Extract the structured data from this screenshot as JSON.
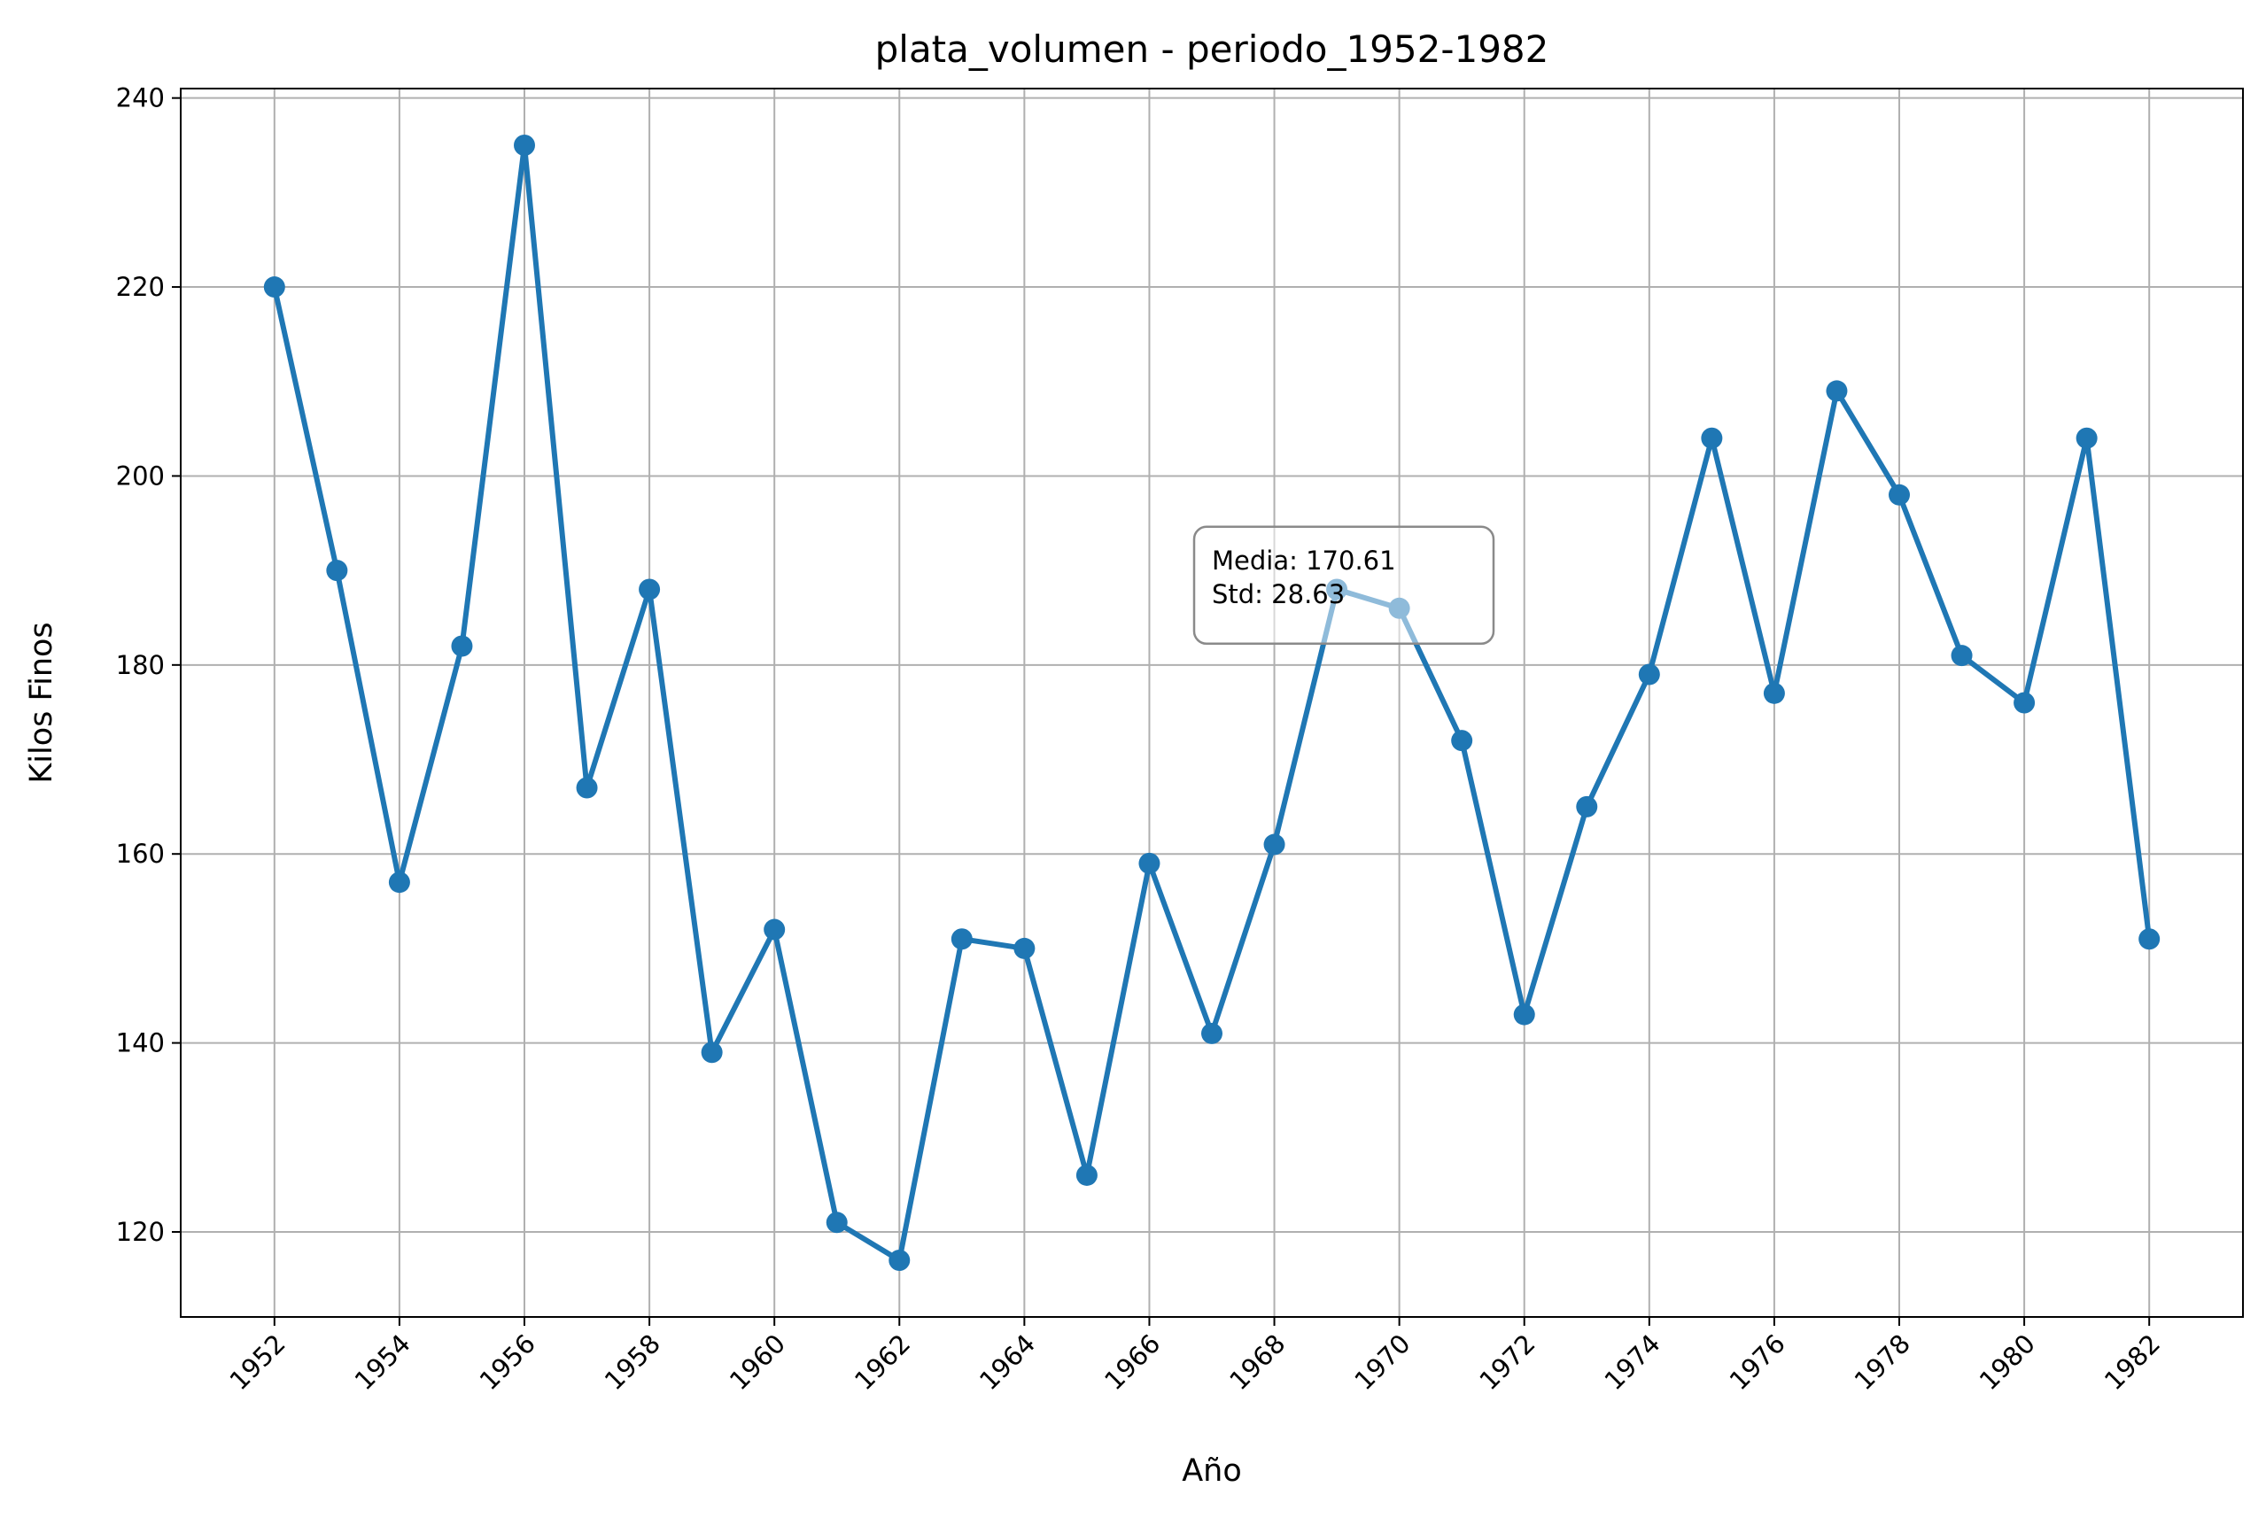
{
  "chart_data": {
    "type": "line",
    "title": "plata_volumen - periodo_1952-1982",
    "xlabel": "Año",
    "ylabel": "Kilos Finos",
    "xlim": [
      1950.5,
      1983.5
    ],
    "ylim": [
      111,
      241
    ],
    "grid": true,
    "line_color": "#1f77b4",
    "x_ticks": [
      1952,
      1954,
      1956,
      1958,
      1960,
      1962,
      1964,
      1966,
      1968,
      1970,
      1972,
      1974,
      1976,
      1978,
      1980,
      1982
    ],
    "y_ticks": [
      120,
      140,
      160,
      180,
      200,
      220,
      240
    ],
    "series": [
      {
        "x": [
          1952,
          1953,
          1954,
          1955,
          1956,
          1957,
          1958,
          1959,
          1960,
          1961,
          1962,
          1963,
          1964,
          1965,
          1966,
          1967,
          1968,
          1969,
          1970,
          1971,
          1972,
          1973,
          1974,
          1975,
          1976,
          1977,
          1978,
          1979,
          1980,
          1981,
          1982
        ],
        "values": [
          220,
          190,
          157,
          182,
          235,
          167,
          188,
          139,
          152,
          121,
          117,
          151,
          150,
          126,
          159,
          141,
          161,
          188,
          186,
          172,
          143,
          165,
          179,
          204,
          177,
          209,
          198,
          181,
          176,
          204,
          151
        ]
      }
    ],
    "annotation": {
      "lines": [
        "Media: 170.61",
        "Std: 28.63"
      ],
      "anchor_x": 1967,
      "anchor_y": 192
    }
  }
}
